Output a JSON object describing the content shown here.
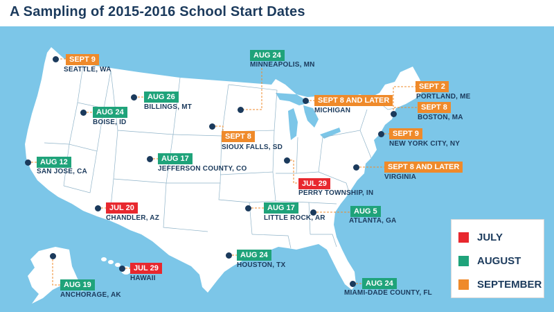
{
  "title": "A Sampling of 2015-2016 School Start Dates",
  "colors": {
    "july": "#e8282e",
    "august": "#1fa37a",
    "september": "#ef8a2a",
    "land": "#ffffff",
    "water": "#7cc6e8",
    "ink": "#1b3a5c"
  },
  "legend": [
    {
      "label": "JULY",
      "color": "#e8282e"
    },
    {
      "label": "AUGUST",
      "color": "#1fa37a"
    },
    {
      "label": "SEPTEMBER",
      "color": "#ef8a2a"
    }
  ],
  "locations": [
    {
      "name": "SEATTLE, WA",
      "date": "SEPT 9",
      "month": "september"
    },
    {
      "name": "MINNEAPOLIS, MN",
      "date": "AUG 24",
      "month": "august"
    },
    {
      "name": "BILLINGS, MT",
      "date": "AUG 26",
      "month": "august"
    },
    {
      "name": "BOISE, ID",
      "date": "AUG 24",
      "month": "august"
    },
    {
      "name": "MICHIGAN",
      "date": "SEPT 8 AND LATER",
      "month": "september"
    },
    {
      "name": "PORTLAND, ME",
      "date": "SEPT 2",
      "month": "september"
    },
    {
      "name": "BOSTON, MA",
      "date": "SEPT 8",
      "month": "september"
    },
    {
      "name": "SIOUX FALLS, SD",
      "date": "SEPT 8",
      "month": "september"
    },
    {
      "name": "NEW YORK CITY, NY",
      "date": "SEPT 9",
      "month": "september"
    },
    {
      "name": "SAN JOSE, CA",
      "date": "AUG 12",
      "month": "august"
    },
    {
      "name": "JEFFERSON COUNTY, CO",
      "date": "AUG 17",
      "month": "august"
    },
    {
      "name": "VIRGINIA",
      "date": "SEPT 8 AND LATER",
      "month": "september"
    },
    {
      "name": "PERRY TOWNSHIP, IN",
      "date": "JUL 29",
      "month": "july"
    },
    {
      "name": "CHANDLER, AZ",
      "date": "JUL 20",
      "month": "july"
    },
    {
      "name": "LITTLE ROCK, AR",
      "date": "AUG 17",
      "month": "august"
    },
    {
      "name": "ATLANTA, GA",
      "date": "AUG 5",
      "month": "august"
    },
    {
      "name": "HOUSTON, TX",
      "date": "AUG 24",
      "month": "august"
    },
    {
      "name": "HAWAII",
      "date": "JUL 29",
      "month": "july"
    },
    {
      "name": "ANCHORAGE, AK",
      "date": "AUG 19",
      "month": "august"
    },
    {
      "name": "MIAMI-DADE COUNTY, FL",
      "date": "AUG 24",
      "month": "august"
    }
  ]
}
